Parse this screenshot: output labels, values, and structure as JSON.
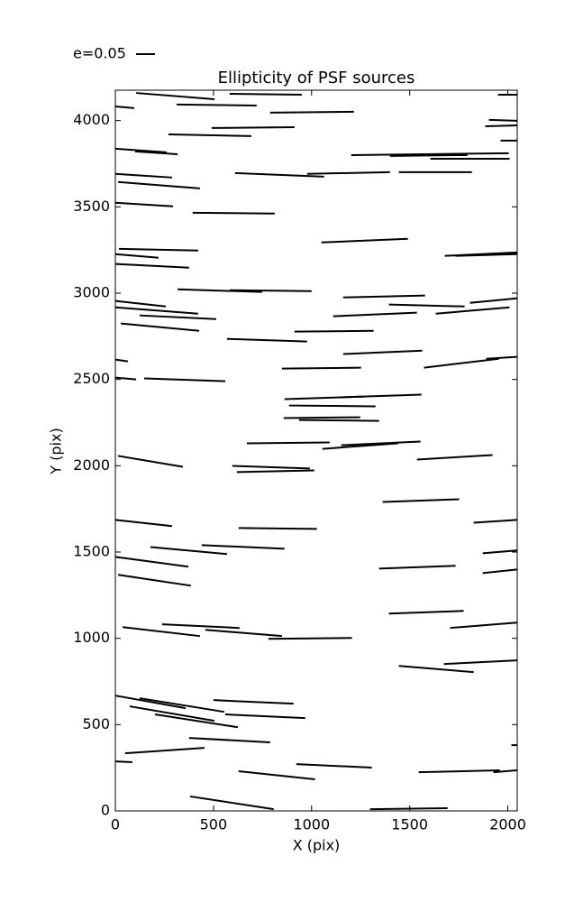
{
  "chart_data": {
    "type": "whisker",
    "title": "Ellipticity of PSF sources",
    "xlabel": "X (pix)",
    "ylabel": "Y (pix)",
    "key_label": "e=0.05",
    "color": "#000000",
    "xlim": [
      0,
      2048
    ],
    "ylim": [
      0,
      4176
    ],
    "xticks": [
      0,
      500,
      1000,
      1500,
      2000
    ],
    "yticks": [
      0,
      500,
      1000,
      1500,
      2000,
      2500,
      3000,
      3500,
      4000
    ],
    "grid": false,
    "segments": [
      [
        106,
        4160,
        505,
        4124
      ],
      [
        0,
        4082,
        96,
        4072
      ],
      [
        583,
        4155,
        950,
        4150
      ],
      [
        312,
        4093,
        720,
        4087
      ],
      [
        789,
        4046,
        1216,
        4051
      ],
      [
        1950,
        4150,
        2046,
        4150
      ],
      [
        271,
        3920,
        693,
        3910
      ],
      [
        491,
        3957,
        913,
        3962
      ],
      [
        1904,
        4004,
        2046,
        3999
      ],
      [
        1885,
        3967,
        2046,
        3972
      ],
      [
        1963,
        3884,
        2046,
        3884
      ],
      [
        0,
        3837,
        261,
        3816
      ],
      [
        101,
        3821,
        317,
        3805
      ],
      [
        1202,
        3800,
        2005,
        3811
      ],
      [
        1399,
        3795,
        1794,
        3800
      ],
      [
        1605,
        3779,
        2009,
        3779
      ],
      [
        0,
        3691,
        289,
        3670
      ],
      [
        610,
        3696,
        1064,
        3675
      ],
      [
        977,
        3691,
        1399,
        3701
      ],
      [
        1445,
        3701,
        1817,
        3701
      ],
      [
        14,
        3644,
        431,
        3607
      ],
      [
        0,
        3524,
        294,
        3503
      ],
      [
        394,
        3466,
        812,
        3461
      ],
      [
        1050,
        3294,
        1491,
        3315
      ],
      [
        18,
        3257,
        422,
        3247
      ],
      [
        0,
        3226,
        220,
        3205
      ],
      [
        0,
        3169,
        376,
        3148
      ],
      [
        1679,
        3216,
        2046,
        3236
      ],
      [
        1734,
        3216,
        2046,
        3226
      ],
      [
        317,
        3022,
        748,
        3007
      ],
      [
        583,
        3017,
        1000,
        3012
      ],
      [
        1161,
        2975,
        1578,
        2986
      ],
      [
        0,
        2955,
        257,
        2923
      ],
      [
        0,
        2918,
        422,
        2881
      ],
      [
        1394,
        2934,
        1780,
        2923
      ],
      [
        1807,
        2944,
        2046,
        2970
      ],
      [
        124,
        2871,
        514,
        2850
      ],
      [
        1110,
        2866,
        1537,
        2887
      ],
      [
        1633,
        2881,
        2009,
        2918
      ],
      [
        28,
        2824,
        427,
        2782
      ],
      [
        913,
        2777,
        1316,
        2782
      ],
      [
        569,
        2735,
        977,
        2720
      ],
      [
        1161,
        2647,
        1564,
        2667
      ],
      [
        0,
        2615,
        64,
        2605
      ],
      [
        1890,
        2620,
        2046,
        2631
      ],
      [
        1573,
        2568,
        1954,
        2620
      ],
      [
        849,
        2563,
        1252,
        2568
      ],
      [
        0,
        2511,
        106,
        2500
      ],
      [
        147,
        2506,
        560,
        2490
      ],
      [
        862,
        2386,
        1560,
        2412
      ],
      [
        885,
        2349,
        1326,
        2344
      ],
      [
        1142,
        2396,
        1271,
        2401
      ],
      [
        858,
        2276,
        1248,
        2281
      ],
      [
        936,
        2265,
        1344,
        2260
      ],
      [
        1055,
        2098,
        1440,
        2130
      ],
      [
        1151,
        2119,
        1555,
        2140
      ],
      [
        670,
        2130,
        1092,
        2135
      ],
      [
        14,
        2057,
        344,
        1994
      ],
      [
        1537,
        2036,
        1922,
        2062
      ],
      [
        596,
        1999,
        991,
        1984
      ],
      [
        619,
        1963,
        1014,
        1973
      ],
      [
        1362,
        1790,
        1752,
        1806
      ],
      [
        0,
        1686,
        289,
        1650
      ],
      [
        1826,
        1670,
        2046,
        1686
      ],
      [
        628,
        1639,
        1027,
        1634
      ],
      [
        179,
        1529,
        569,
        1488
      ],
      [
        440,
        1540,
        862,
        1519
      ],
      [
        1872,
        1493,
        2046,
        1509
      ],
      [
        0,
        1472,
        372,
        1415
      ],
      [
        1344,
        1404,
        1734,
        1420
      ],
      [
        1872,
        1378,
        2046,
        1399
      ],
      [
        14,
        1368,
        385,
        1305
      ],
      [
        1394,
        1143,
        1775,
        1159
      ],
      [
        1706,
        1060,
        2046,
        1091
      ],
      [
        239,
        1081,
        633,
        1060
      ],
      [
        37,
        1065,
        431,
        1013
      ],
      [
        459,
        1049,
        849,
        1013
      ],
      [
        780,
        997,
        1206,
        1002
      ],
      [
        1674,
        851,
        2046,
        872
      ],
      [
        1445,
        840,
        1826,
        804
      ],
      [
        0,
        668,
        358,
        595
      ],
      [
        124,
        653,
        555,
        574
      ],
      [
        500,
        642,
        908,
        621
      ],
      [
        73,
        606,
        505,
        522
      ],
      [
        560,
        559,
        968,
        538
      ],
      [
        202,
        559,
        624,
        485
      ],
      [
        376,
        423,
        789,
        397
      ],
      [
        2018,
        381,
        2046,
        381
      ],
      [
        50,
        334,
        454,
        365
      ],
      [
        0,
        287,
        87,
        282
      ],
      [
        922,
        271,
        1307,
        251
      ],
      [
        628,
        230,
        1018,
        183
      ],
      [
        1546,
        224,
        1959,
        235
      ],
      [
        1927,
        224,
        2046,
        235
      ],
      [
        381,
        84,
        807,
        10
      ],
      [
        1298,
        10,
        1693,
        16
      ]
    ]
  }
}
